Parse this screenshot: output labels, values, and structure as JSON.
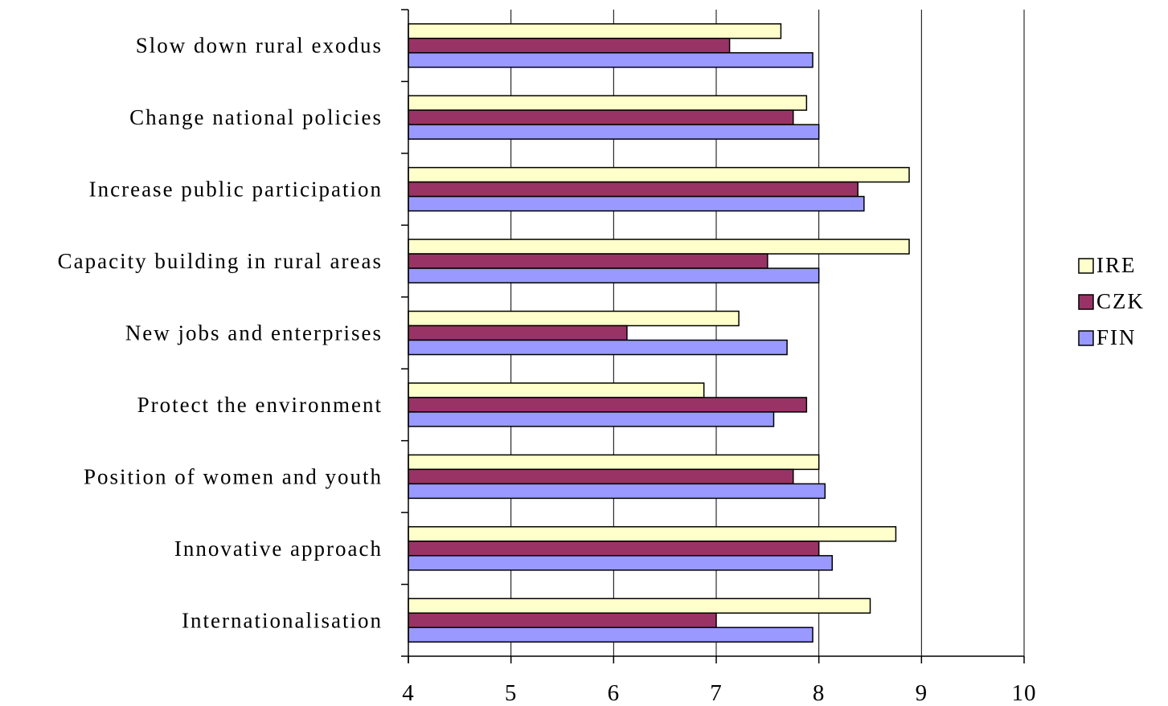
{
  "chart_data": {
    "type": "bar",
    "orientation": "horizontal",
    "title": "",
    "xlabel": "",
    "ylabel": "",
    "xlim": [
      4,
      10
    ],
    "x_ticks": [
      4,
      5,
      6,
      7,
      8,
      9,
      10
    ],
    "grid": true,
    "legend_position": "right",
    "categories": [
      "Slow down rural exodus",
      "Change national policies",
      "Increase public participation",
      "Capacity building in rural areas",
      "New jobs and enterprises",
      "Protect the environment",
      "Position of women and youth",
      "Innovative approach",
      "Internationalisation"
    ],
    "series": [
      {
        "name": "IRE",
        "color": "#FFFFCC",
        "values": [
          7.63,
          7.88,
          8.88,
          8.88,
          7.22,
          6.88,
          8.0,
          8.75,
          8.5
        ]
      },
      {
        "name": "CZK",
        "color": "#993366",
        "values": [
          7.13,
          7.75,
          8.38,
          7.5,
          6.13,
          7.88,
          7.75,
          8.0,
          7.0
        ]
      },
      {
        "name": "FIN",
        "color": "#9999FF",
        "values": [
          7.94,
          8.0,
          8.44,
          8.0,
          7.69,
          7.56,
          8.06,
          8.13,
          7.94
        ]
      }
    ]
  }
}
